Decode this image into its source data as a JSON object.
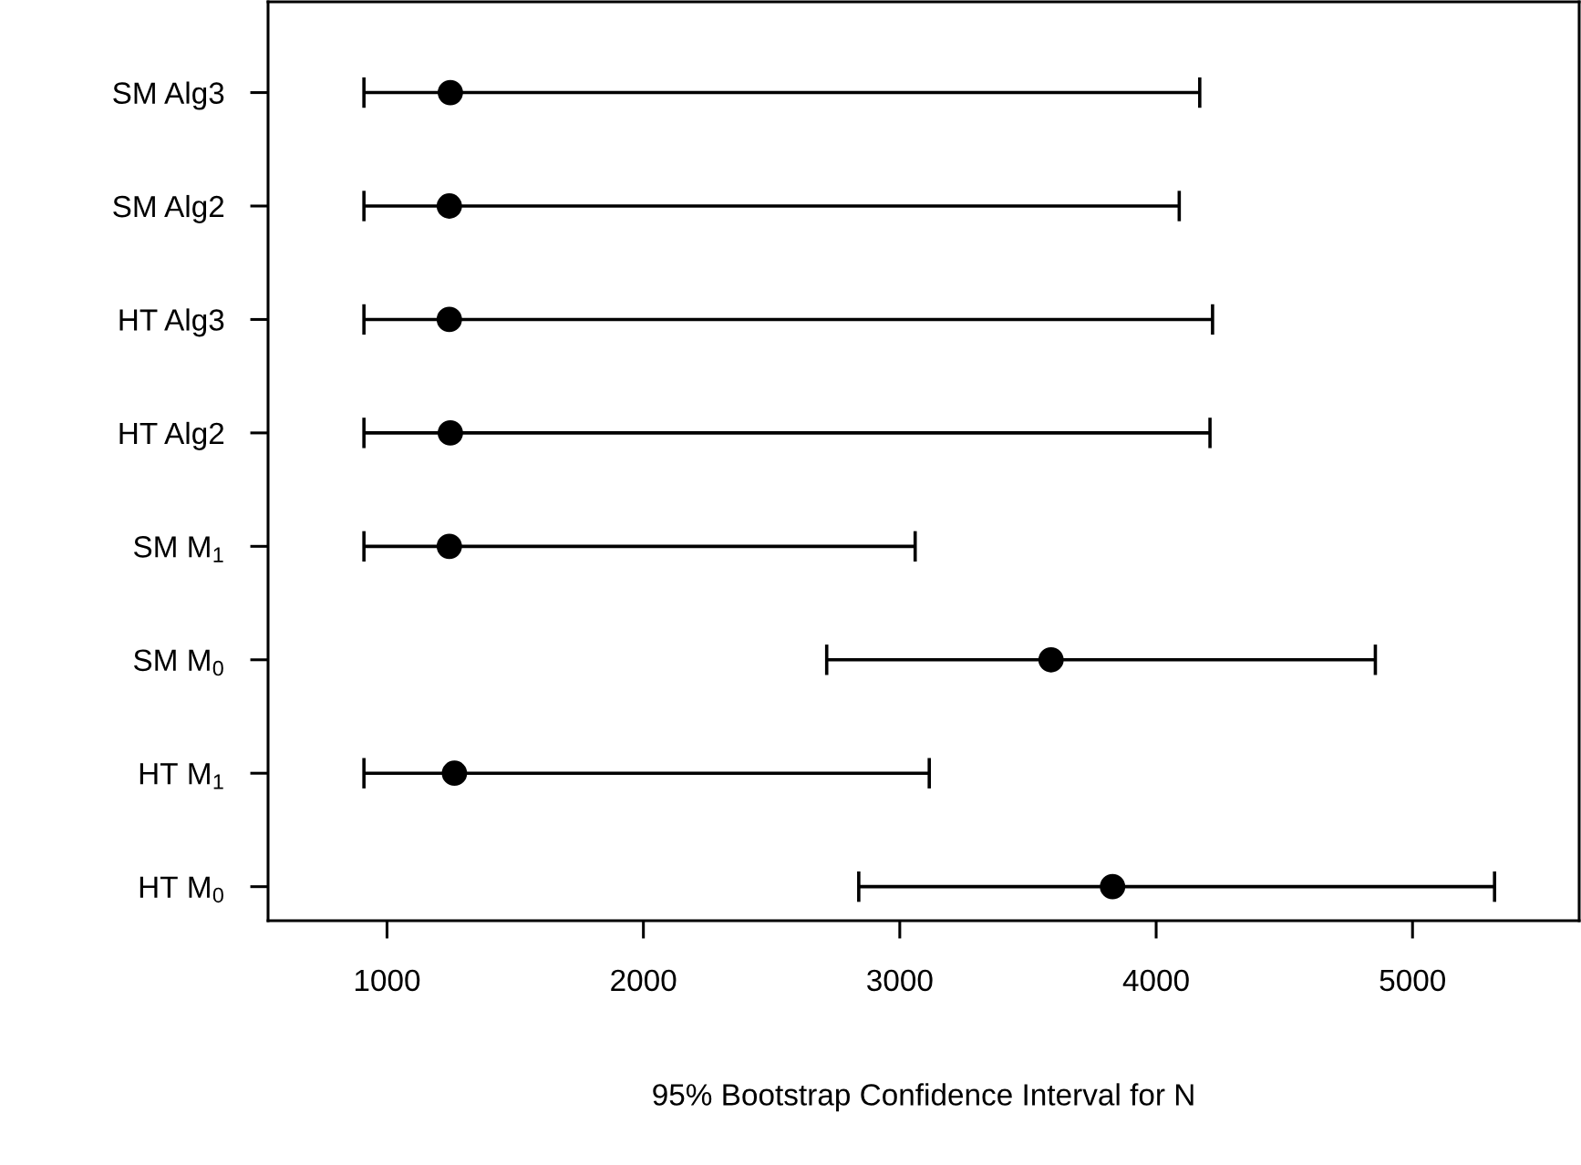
{
  "chart_data": {
    "type": "scatter",
    "orientation": "horizontal",
    "xlabel": "95% Bootstrap Confidence Interval for N",
    "categories": [
      "SM Alg3",
      "SM Alg2",
      "HT Alg3",
      "HT Alg2",
      "SM M$_{1}$",
      "SM M$_{0}$",
      "HT M$_{1}$",
      "HT M$_{0}$"
    ],
    "series": [
      {
        "color": "#000000",
        "values": [
          1247,
          1243,
          1243,
          1247,
          1243,
          3590,
          1263,
          3830
        ],
        "errors": [
          [
            910,
            4170
          ],
          [
            910,
            4090
          ],
          [
            910,
            4220
          ],
          [
            910,
            4210
          ],
          [
            910,
            3060
          ],
          [
            2715,
            4855
          ],
          [
            910,
            3115
          ],
          [
            2840,
            5320
          ]
        ]
      }
    ],
    "xlim": [
      536,
      5650
    ],
    "xticks": [
      1000,
      2000,
      3000,
      4000,
      5000
    ],
    "marker": "circle",
    "grid": false,
    "legend": false
  }
}
